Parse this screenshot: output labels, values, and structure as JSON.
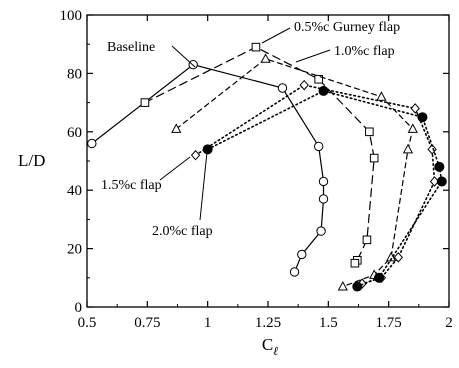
{
  "chart_data": {
    "type": "line",
    "xlabel": "C",
    "xlabel_subscript": "ℓ",
    "ylabel": "L/D",
    "xlim": [
      0.5,
      2.0
    ],
    "ylim": [
      0,
      100
    ],
    "xticks": [
      0.5,
      0.75,
      1,
      1.25,
      1.5,
      1.75,
      2
    ],
    "xtick_labels": [
      "0.5",
      "0.75",
      "1",
      "1.25",
      "1.5",
      "1.75",
      "2"
    ],
    "yticks": [
      0,
      20,
      40,
      60,
      80,
      100
    ],
    "ytick_labels": [
      "0",
      "20",
      "40",
      "60",
      "80",
      "100"
    ],
    "grid": false,
    "series": [
      {
        "name": "Baseline",
        "marker": "circle-open",
        "line": "solid",
        "x": [
          0.52,
          0.94,
          1.31,
          1.46,
          1.48,
          1.48,
          1.47,
          1.39,
          1.36
        ],
        "y": [
          56,
          83,
          75,
          55,
          43,
          37,
          26,
          18,
          12
        ]
      },
      {
        "name": "0.5%c Gurney flap",
        "marker": "square-open",
        "line": "long-dash",
        "x": [
          0.74,
          1.2,
          1.46,
          1.67,
          1.69,
          1.66,
          1.62,
          1.61
        ],
        "y": [
          70,
          89,
          78,
          60,
          51,
          23,
          16,
          15
        ]
      },
      {
        "name": "1.0%c flap",
        "marker": "triangle-open",
        "line": "short-dash",
        "x": [
          0.87,
          1.24,
          1.72,
          1.85,
          1.83,
          1.76,
          1.69,
          1.56
        ],
        "y": [
          61,
          85,
          72,
          61,
          54,
          17,
          11,
          7
        ]
      },
      {
        "name": "1.5%c flap",
        "marker": "diamond-open",
        "line": "dotted",
        "x": [
          0.95,
          1.4,
          1.86,
          1.93,
          1.94,
          1.79,
          1.72,
          1.64
        ],
        "y": [
          52,
          76,
          68,
          54,
          43,
          17,
          10,
          8
        ]
      },
      {
        "name": "2.0%c flap",
        "marker": "circle-filled",
        "line": "dotted",
        "x": [
          1.0,
          1.48,
          1.89,
          1.96,
          1.97,
          1.71,
          1.62
        ],
        "y": [
          54,
          74,
          65,
          48,
          43,
          10,
          7
        ]
      }
    ],
    "annotations": [
      "Baseline",
      "0.5%c Gurney flap",
      "1.0%c flap",
      "1.5%c flap",
      "2.0%c flap"
    ]
  }
}
